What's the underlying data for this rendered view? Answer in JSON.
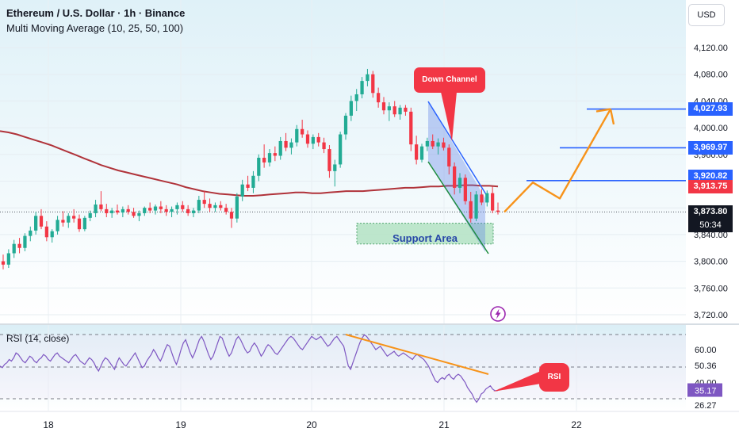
{
  "header": {
    "title": "Ethereum / U.S. Dollar · 1h · Binance",
    "indicator": "Multi Moving Average (10, 25, 50, 100)",
    "rsi_label": "RSI (14, close)",
    "currency": "USD"
  },
  "annotations": {
    "down_channel": "Down Channel",
    "support_area": "Support Area",
    "rsi_callout": "RSI"
  },
  "price_tags": {
    "t1": "4,027.93",
    "t2": "3,969.97",
    "t3": "3,920.82",
    "t4": "3,913.75",
    "last": "3,873.80",
    "countdown": "50:34"
  },
  "colors": {
    "bull": "#22ab94",
    "bear": "#f23645",
    "ma": "#b0333a",
    "rsi": "#7e57c2",
    "target_line": "#2962ff",
    "projection": "#f7931a",
    "support_fill": "#b7e4c7"
  },
  "icons": {
    "replay": "lightning-replay-icon"
  },
  "chart_data": [
    {
      "type": "candlestick",
      "title": "Ethereum / U.S. Dollar · 1h · Binance",
      "x_ticks": [
        "18",
        "19",
        "20",
        "21",
        "22"
      ],
      "y_ticks": [
        "4,120.00",
        "4,080.00",
        "4,040.00",
        "4,000.00",
        "3,960.00",
        "3,920.00",
        "3,880.00",
        "3,840.00",
        "3,800.00",
        "3,760.00",
        "3,720.00"
      ],
      "y_tick_values": [
        4120,
        4080,
        4040,
        4000,
        3960,
        3920,
        3880,
        3840,
        3800,
        3760,
        3720
      ],
      "ylim": [
        3710,
        4135
      ],
      "grid": true,
      "candles_ohlc": [
        [
          3800,
          3810,
          3788,
          3795
        ],
        [
          3795,
          3818,
          3790,
          3812
        ],
        [
          3812,
          3832,
          3805,
          3826
        ],
        [
          3826,
          3835,
          3812,
          3820
        ],
        [
          3820,
          3842,
          3815,
          3838
        ],
        [
          3838,
          3852,
          3830,
          3846
        ],
        [
          3846,
          3874,
          3840,
          3868
        ],
        [
          3868,
          3878,
          3848,
          3852
        ],
        [
          3852,
          3860,
          3830,
          3836
        ],
        [
          3836,
          3848,
          3828,
          3845
        ],
        [
          3845,
          3868,
          3840,
          3862
        ],
        [
          3862,
          3875,
          3852,
          3858
        ],
        [
          3858,
          3872,
          3850,
          3868
        ],
        [
          3868,
          3878,
          3858,
          3864
        ],
        [
          3864,
          3870,
          3844,
          3848
        ],
        [
          3848,
          3868,
          3845,
          3865
        ],
        [
          3865,
          3876,
          3860,
          3872
        ],
        [
          3872,
          3892,
          3866,
          3885
        ],
        [
          3885,
          3905,
          3875,
          3878
        ],
        [
          3878,
          3886,
          3866,
          3872
        ],
        [
          3872,
          3880,
          3865,
          3876
        ],
        [
          3876,
          3885,
          3870,
          3873
        ],
        [
          3873,
          3882,
          3866,
          3878
        ],
        [
          3878,
          3884,
          3870,
          3874
        ],
        [
          3874,
          3880,
          3865,
          3868
        ],
        [
          3868,
          3876,
          3860,
          3872
        ],
        [
          3872,
          3882,
          3868,
          3880
        ],
        [
          3880,
          3888,
          3872,
          3876
        ],
        [
          3876,
          3885,
          3870,
          3882
        ],
        [
          3882,
          3890,
          3872,
          3878
        ],
        [
          3878,
          3884,
          3868,
          3874
        ],
        [
          3874,
          3882,
          3866,
          3878
        ],
        [
          3878,
          3888,
          3870,
          3884
        ],
        [
          3884,
          3890,
          3874,
          3878
        ],
        [
          3878,
          3884,
          3868,
          3872
        ],
        [
          3872,
          3880,
          3866,
          3876
        ],
        [
          3876,
          3898,
          3872,
          3892
        ],
        [
          3892,
          3905,
          3880,
          3886
        ],
        [
          3886,
          3894,
          3874,
          3880
        ],
        [
          3880,
          3888,
          3874,
          3884
        ],
        [
          3884,
          3890,
          3876,
          3880
        ],
        [
          3880,
          3886,
          3870,
          3874
        ],
        [
          3874,
          3880,
          3850,
          3864
        ],
        [
          3864,
          3902,
          3858,
          3897
        ],
        [
          3897,
          3922,
          3890,
          3915
        ],
        [
          3915,
          3928,
          3905,
          3910
        ],
        [
          3910,
          3935,
          3902,
          3928
        ],
        [
          3928,
          3960,
          3920,
          3955
        ],
        [
          3955,
          3975,
          3940,
          3948
        ],
        [
          3948,
          3968,
          3942,
          3962
        ],
        [
          3962,
          3972,
          3950,
          3958
        ],
        [
          3958,
          3986,
          3952,
          3980
        ],
        [
          3980,
          3992,
          3965,
          3970
        ],
        [
          3970,
          3984,
          3960,
          3978
        ],
        [
          3978,
          4004,
          3972,
          3998
        ],
        [
          3998,
          4012,
          3985,
          3990
        ],
        [
          3990,
          3996,
          3970,
          3976
        ],
        [
          3976,
          3990,
          3968,
          3986
        ],
        [
          3986,
          3992,
          3972,
          3978
        ],
        [
          3978,
          3985,
          3962,
          3968
        ],
        [
          3968,
          3974,
          3925,
          3935
        ],
        [
          3935,
          3952,
          3912,
          3945
        ],
        [
          3945,
          3994,
          3940,
          3990
        ],
        [
          3990,
          4022,
          3982,
          4018
        ],
        [
          4018,
          4048,
          4010,
          4040
        ],
        [
          4040,
          4058,
          4025,
          4050
        ],
        [
          4050,
          4076,
          4044,
          4070
        ],
        [
          4070,
          4088,
          4062,
          4080
        ],
        [
          4080,
          4085,
          4045,
          4052
        ],
        [
          4052,
          4060,
          4030,
          4038
        ],
        [
          4038,
          4046,
          4020,
          4026
        ],
        [
          4026,
          4038,
          4010,
          4032
        ],
        [
          4032,
          4040,
          4016,
          4020
        ],
        [
          4020,
          4034,
          4012,
          4030
        ],
        [
          4030,
          4034,
          4018,
          4024
        ],
        [
          4024,
          4030,
          3965,
          3975
        ],
        [
          3975,
          3988,
          3945,
          3952
        ],
        [
          3952,
          3976,
          3948,
          3972
        ],
        [
          3972,
          3985,
          3965,
          3980
        ],
        [
          3980,
          3990,
          3968,
          3972
        ],
        [
          3972,
          3984,
          3960,
          3978
        ],
        [
          3978,
          3985,
          3966,
          3970
        ],
        [
          3970,
          3975,
          3930,
          3942
        ],
        [
          3942,
          3948,
          3900,
          3910
        ],
        [
          3910,
          3932,
          3902,
          3925
        ],
        [
          3925,
          3930,
          3885,
          3890
        ],
        [
          3890,
          3904,
          3858,
          3864
        ],
        [
          3864,
          3905,
          3860,
          3900
        ],
        [
          3900,
          3908,
          3884,
          3888
        ],
        [
          3888,
          3906,
          3882,
          3902
        ],
        [
          3902,
          3912,
          3872,
          3876
        ],
        [
          3876,
          3888,
          3870,
          3874
        ]
      ],
      "moving_average": [
        3995,
        3993,
        3990,
        3986,
        3982,
        3978,
        3974,
        3969,
        3964,
        3959,
        3954,
        3949,
        3944,
        3940,
        3936,
        3933,
        3930,
        3927,
        3924,
        3921,
        3918,
        3915,
        3911,
        3908,
        3905,
        3903,
        3901,
        3900,
        3899,
        3898,
        3898,
        3899,
        3900,
        3901,
        3902,
        3903,
        3903,
        3902,
        3902,
        3903,
        3904,
        3905,
        3905,
        3905,
        3906,
        3907,
        3908,
        3909,
        3910,
        3910,
        3911,
        3912,
        3912,
        3913,
        3913,
        3914,
        3914,
        3913,
        3913,
        3912
      ],
      "horizontal_levels": [
        4027.93,
        3969.97,
        3920.82,
        3913.75,
        3873.8
      ],
      "last_price": 3873.8,
      "countdown": "50:34",
      "support_area": {
        "label": "Support Area",
        "y_range": [
          3826,
          3857
        ]
      },
      "down_channel": {
        "label": "Down Channel"
      },
      "projection_path_values": [
        3873.8,
        3918,
        3894,
        4027.93,
        4005
      ]
    },
    {
      "type": "line",
      "title": "RSI (14, close)",
      "y_ticks": [
        "60.00",
        "50.36",
        "40.00",
        "35.17",
        "26.27"
      ],
      "y_tick_values": [
        60.0,
        50.36,
        40.0,
        35.17,
        26.27
      ],
      "ylim": [
        22,
        76
      ],
      "levels": [
        70,
        50,
        30
      ],
      "series": [
        {
          "values": [
            50,
            49,
            51,
            52,
            54,
            53,
            55,
            58,
            57,
            55,
            53,
            52,
            54,
            56,
            55,
            53,
            52,
            54,
            55,
            57,
            56,
            54,
            53,
            55,
            57,
            58,
            56,
            55,
            54,
            53,
            52,
            54,
            56,
            57,
            55,
            53,
            52,
            51,
            53,
            55,
            54,
            52,
            49,
            47,
            50,
            53,
            55,
            54,
            52,
            50,
            48,
            52,
            55,
            53,
            51,
            50,
            52,
            54,
            56,
            58,
            55,
            52,
            49,
            50,
            53,
            55,
            57,
            60,
            58,
            55,
            53,
            56,
            60,
            63,
            62,
            58,
            54,
            51,
            55,
            60,
            64,
            66,
            62,
            58,
            55,
            58,
            62,
            66,
            68,
            65,
            61,
            57,
            54,
            56,
            60,
            64,
            68,
            67,
            63,
            59,
            56,
            58,
            62,
            66,
            68,
            66,
            63,
            60,
            58,
            59,
            62,
            64,
            62,
            59,
            56,
            58,
            61,
            63,
            62,
            60,
            58,
            57,
            59,
            61,
            63,
            65,
            67,
            68,
            67,
            65,
            63,
            61,
            60,
            62,
            64,
            66,
            68,
            67,
            66,
            67,
            68,
            66,
            64,
            62,
            63,
            65,
            67,
            68,
            66,
            64,
            62,
            56,
            50,
            48,
            52,
            56,
            60,
            64,
            67,
            69,
            68,
            66,
            64,
            62,
            60,
            61,
            62,
            60,
            58,
            56,
            57,
            58,
            59,
            57,
            56,
            57,
            58,
            57,
            56,
            55,
            54,
            56,
            57,
            56,
            55,
            54,
            52,
            50,
            47,
            44,
            41,
            40,
            42,
            43,
            42,
            44,
            45,
            43,
            42,
            44,
            45,
            44,
            42,
            40,
            37,
            35,
            33,
            30,
            28,
            30,
            33,
            34,
            36,
            37,
            38,
            36,
            35,
            35,
            36
          ]
        }
      ]
    }
  ]
}
